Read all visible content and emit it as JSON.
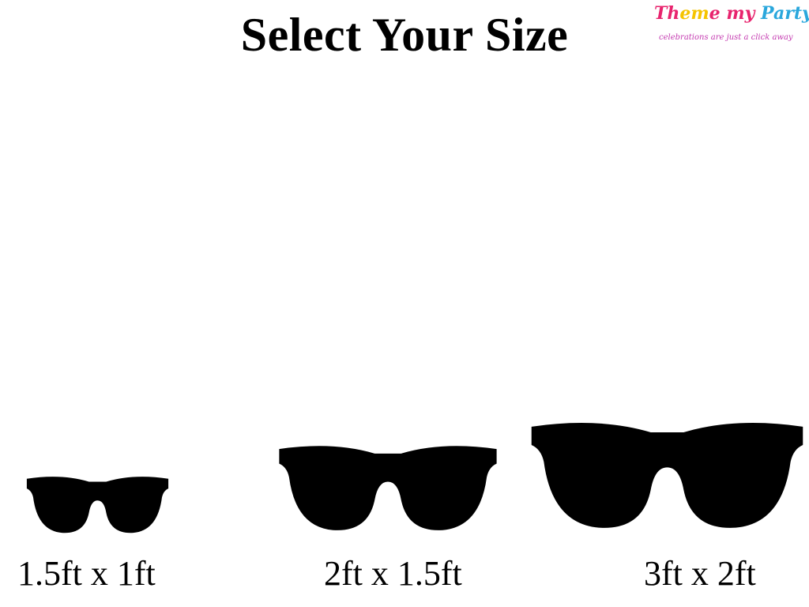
{
  "title": "Select Your Size",
  "logo": {
    "brand": "Theme my Party",
    "tagline": "celebrations are just a click away",
    "colors": [
      "#e8246e",
      "#f5c400",
      "#e8246e",
      "#2aa7dc"
    ]
  },
  "sizes": [
    {
      "label": "1.5ft x 1ft",
      "icon": "sunglasses-icon"
    },
    {
      "label": "2ft x 1.5ft",
      "icon": "sunglasses-icon"
    },
    {
      "label": "3ft x 2ft",
      "icon": "sunglasses-icon"
    }
  ]
}
